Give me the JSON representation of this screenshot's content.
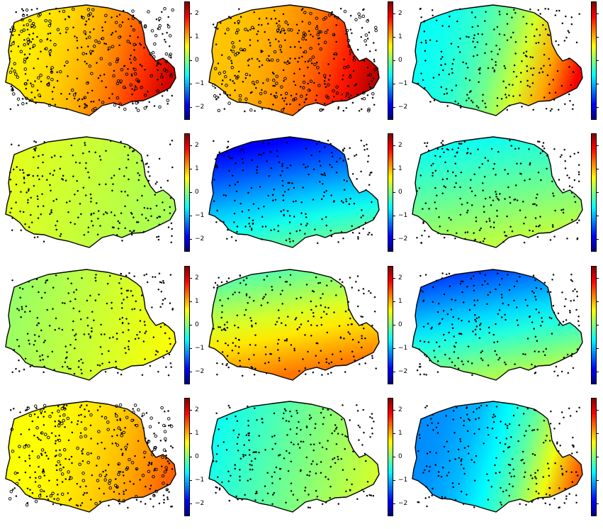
{
  "figure": {
    "colorbar": {
      "ticks": [
        {
          "value": 2,
          "label": "2"
        },
        {
          "value": 1,
          "label": "1"
        },
        {
          "value": 0,
          "label": "0"
        },
        {
          "value": -1,
          "label": "−1"
        },
        {
          "value": -2,
          "label": "−2"
        }
      ],
      "range": [
        -2.5,
        2.5
      ],
      "colors": [
        "#00007f",
        "#0000ff",
        "#007fff",
        "#00ffff",
        "#7fff7f",
        "#ffff00",
        "#ff7f00",
        "#ff0000",
        "#7f0000"
      ]
    },
    "panels": [
      {
        "id": "r1c1",
        "level_w": 0.7,
        "level_e": 2.1,
        "gradient": "west-to-east",
        "point_density": "high"
      },
      {
        "id": "r1c2",
        "level_w": 0.9,
        "level_e": 2.2,
        "gradient": "west-to-east",
        "point_density": "high"
      },
      {
        "id": "r1c3",
        "level_w": -0.6,
        "level_e": 1.9,
        "gradient": "west-to-east",
        "point_density": "medium"
      },
      {
        "id": "r2c1",
        "level_w": 0.5,
        "level_e": 0.2,
        "gradient": "flat",
        "point_density": "medium"
      },
      {
        "id": "r2c2",
        "level_w": -2.2,
        "level_e": -0.2,
        "gradient": "north-to-south",
        "point_density": "medium"
      },
      {
        "id": "r2c3",
        "level_w": -0.7,
        "level_e": 0.3,
        "gradient": "north-to-south",
        "point_density": "medium"
      },
      {
        "id": "r3c1",
        "level_w": 0.1,
        "level_e": 0.6,
        "gradient": "flat",
        "point_density": "medium"
      },
      {
        "id": "r3c2",
        "level_w": -0.4,
        "level_e": 1.3,
        "gradient": "north-to-south",
        "point_density": "medium"
      },
      {
        "id": "r3c3",
        "level_w": -1.8,
        "level_e": 0.2,
        "gradient": "north-to-south",
        "point_density": "medium"
      },
      {
        "id": "r4c1",
        "level_w": 0.6,
        "level_e": 1.4,
        "gradient": "west-to-east",
        "point_density": "high"
      },
      {
        "id": "r4c2",
        "level_w": -0.6,
        "level_e": 0.4,
        "gradient": "flat",
        "point_density": "medium"
      },
      {
        "id": "r4c3",
        "level_w": -1.2,
        "level_e": 1.4,
        "gradient": "west-to-east",
        "point_density": "medium"
      }
    ]
  }
}
